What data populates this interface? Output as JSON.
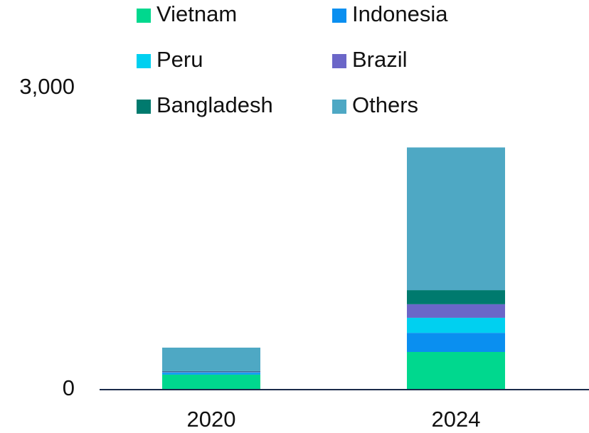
{
  "chart_data": {
    "type": "stacked_bar",
    "categories": [
      "2020",
      "2024"
    ],
    "series": [
      {
        "name": "Vietnam",
        "color": "#00d88e",
        "values": [
          150,
          375
        ]
      },
      {
        "name": "Indonesia",
        "color": "#0a8ff0",
        "values": [
          15,
          190
        ]
      },
      {
        "name": "Peru",
        "color": "#00d0f0",
        "values": [
          5,
          150
        ]
      },
      {
        "name": "Brazil",
        "color": "#6b66c8",
        "values": [
          10,
          135
        ]
      },
      {
        "name": "Bangladesh",
        "color": "#007a6e",
        "values": [
          5,
          140
        ]
      },
      {
        "name": "Others",
        "color": "#4ea8c4",
        "values": [
          233,
          1420
        ]
      }
    ],
    "ylim": [
      0,
      3000
    ],
    "yticks": [
      0,
      {
        "value": 3000,
        "label": "3,000"
      }
    ],
    "grid": false
  }
}
